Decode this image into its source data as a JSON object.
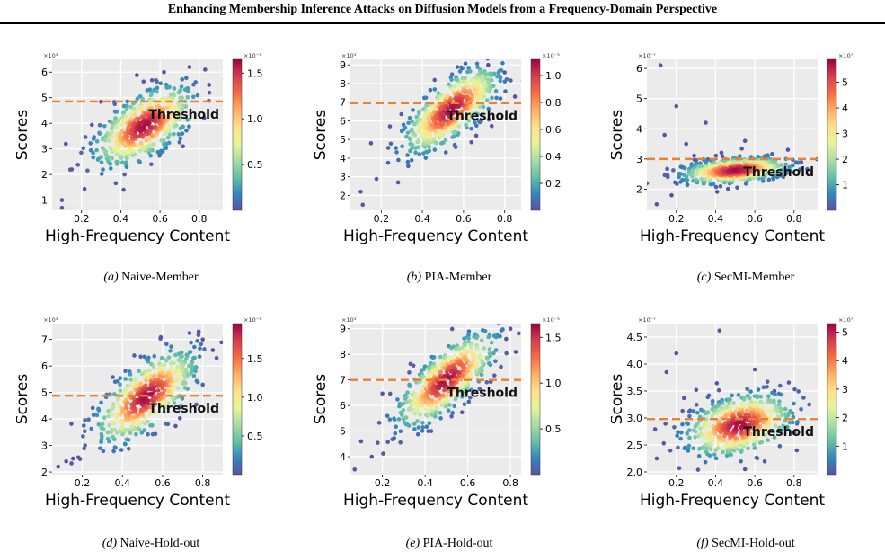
{
  "page": {
    "title": "Enhancing Membership Inference Attacks on Diffusion Models from a Frequency-Domain Perspective"
  },
  "colors": {
    "threshold": "#ee7f32",
    "plot_bg": "#ebebeb",
    "grid": "#ffffff",
    "colormap": [
      "#5e4fa2",
      "#3288bd",
      "#66c2a5",
      "#abdda4",
      "#e6f598",
      "#fee08b",
      "#fdae61",
      "#f46d43",
      "#d53e4f",
      "#9e0142"
    ]
  },
  "chart_data": [
    {
      "type": "scatter",
      "caption_letter": "(a)",
      "caption": "Naive-Member",
      "xlabel": "High-Frequency Content",
      "ylabel": "Scores",
      "y_exponent": "×10³",
      "cbar_exponent": "×10⁻³",
      "xlim": [
        0.05,
        0.92
      ],
      "ylim": [
        0.6,
        6.5
      ],
      "xticks": [
        0.2,
        0.4,
        0.6,
        0.8
      ],
      "yticks": [
        1,
        2,
        3,
        4,
        5,
        6
      ],
      "cbar_range": [
        0.0,
        1.65
      ],
      "cbar_ticks": [
        0.5,
        1.0,
        1.5
      ],
      "threshold": 4.85,
      "threshold_label": "Threshold",
      "cloud": {
        "mx": 0.52,
        "my": 3.9,
        "sx": 0.13,
        "sy": 0.8,
        "rho": 0.6,
        "n": 520
      },
      "outliers": [
        [
          0.1,
          1.0
        ],
        [
          0.1,
          0.7
        ],
        [
          0.12,
          3.2
        ],
        [
          0.15,
          2.2
        ],
        [
          0.75,
          6.2
        ],
        [
          0.83,
          6.1
        ],
        [
          0.85,
          5.5
        ],
        [
          0.62,
          6.0
        ]
      ],
      "grid": true
    },
    {
      "type": "scatter",
      "caption_letter": "(b)",
      "caption": "PIA-Member",
      "xlabel": "High-Frequency Content",
      "ylabel": "Scores",
      "y_exponent": "×10³",
      "cbar_exponent": "×10⁻³",
      "xlim": [
        0.05,
        0.88
      ],
      "ylim": [
        1.2,
        9.3
      ],
      "xticks": [
        0.2,
        0.4,
        0.6,
        0.8
      ],
      "yticks": [
        2,
        3,
        4,
        5,
        6,
        7,
        8,
        9
      ],
      "cbar_range": [
        0.0,
        1.12
      ],
      "cbar_ticks": [
        0.2,
        0.4,
        0.6,
        0.8,
        1.0
      ],
      "threshold": 6.95,
      "threshold_label": "Threshold",
      "cloud": {
        "mx": 0.54,
        "my": 6.6,
        "sx": 0.12,
        "sy": 1.2,
        "rho": 0.72,
        "n": 520
      },
      "outliers": [
        [
          0.1,
          2.2
        ],
        [
          0.11,
          1.5
        ],
        [
          0.15,
          4.8
        ],
        [
          0.8,
          8.6
        ],
        [
          0.85,
          7.3
        ],
        [
          0.72,
          9.0
        ]
      ],
      "grid": true
    },
    {
      "type": "scatter",
      "caption_letter": "(c)",
      "caption": "SecMI-Member",
      "xlabel": "High-Frequency Content",
      "ylabel": "Scores",
      "y_exponent": "×10⁻⁷",
      "cbar_exponent": "×10⁷",
      "xlim": [
        0.05,
        0.92
      ],
      "ylim": [
        1.3,
        6.3
      ],
      "xticks": [
        0.2,
        0.4,
        0.6,
        0.8
      ],
      "yticks": [
        2,
        3,
        4,
        5,
        6
      ],
      "cbar_range": [
        0.0,
        5.9
      ],
      "cbar_ticks": [
        1,
        2,
        3,
        4,
        5
      ],
      "threshold": 3.0,
      "threshold_label": "Threshold",
      "cloud": {
        "mx": 0.5,
        "my": 2.62,
        "sx": 0.14,
        "sy": 0.22,
        "rho": 0.35,
        "n": 520
      },
      "outliers": [
        [
          0.12,
          6.1
        ],
        [
          0.2,
          4.75
        ],
        [
          0.35,
          4.2
        ],
        [
          0.14,
          3.8
        ],
        [
          0.1,
          1.5
        ],
        [
          0.25,
          3.5
        ],
        [
          0.55,
          3.6
        ]
      ],
      "grid": true
    },
    {
      "type": "scatter",
      "caption_letter": "(d)",
      "caption": "Naive-Hold-out",
      "xlabel": "High-Frequency Content",
      "ylabel": "Scores",
      "y_exponent": "×10³",
      "cbar_exponent": "×10⁻³",
      "xlim": [
        0.05,
        0.9
      ],
      "ylim": [
        1.9,
        7.6
      ],
      "xticks": [
        0.2,
        0.4,
        0.6,
        0.8
      ],
      "yticks": [
        2,
        3,
        4,
        5,
        6,
        7
      ],
      "cbar_range": [
        0.0,
        1.95
      ],
      "cbar_ticks": [
        0.5,
        1.0,
        1.5
      ],
      "threshold": 4.88,
      "threshold_label": "Threshold",
      "cloud": {
        "mx": 0.52,
        "my": 4.85,
        "sx": 0.13,
        "sy": 0.9,
        "rho": 0.68,
        "n": 520
      },
      "outliers": [
        [
          0.08,
          2.2
        ],
        [
          0.12,
          2.4
        ],
        [
          0.78,
          7.3
        ],
        [
          0.85,
          6.6
        ],
        [
          0.8,
          7.0
        ]
      ],
      "grid": true
    },
    {
      "type": "scatter",
      "caption_letter": "(e)",
      "caption": "PIA-Hold-out",
      "xlabel": "High-Frequency Content",
      "ylabel": "Scores",
      "y_exponent": "×10³",
      "cbar_exponent": "×10⁻³",
      "xlim": [
        0.05,
        0.85
      ],
      "ylim": [
        3.3,
        9.2
      ],
      "xticks": [
        0.2,
        0.4,
        0.6,
        0.8
      ],
      "yticks": [
        4,
        5,
        6,
        7,
        8,
        9
      ],
      "cbar_range": [
        0.0,
        1.65
      ],
      "cbar_ticks": [
        0.5,
        1.0,
        1.5
      ],
      "threshold": 7.0,
      "threshold_label": "Threshold",
      "cloud": {
        "mx": 0.5,
        "my": 7.0,
        "sx": 0.12,
        "sy": 0.95,
        "rho": 0.75,
        "n": 520
      },
      "outliers": [
        [
          0.07,
          3.5
        ],
        [
          0.1,
          4.6
        ],
        [
          0.8,
          9.0
        ],
        [
          0.78,
          8.6
        ],
        [
          0.15,
          4.0
        ]
      ],
      "grid": true
    },
    {
      "type": "scatter",
      "caption_letter": "(f)",
      "caption": "SecMI-Hold-out",
      "xlabel": "High-Frequency Content",
      "ylabel": "Scores",
      "y_exponent": "×10⁻⁷",
      "cbar_exponent": "×10⁷",
      "xlim": [
        0.05,
        0.92
      ],
      "ylim": [
        1.95,
        4.75
      ],
      "xticks": [
        0.2,
        0.4,
        0.6,
        0.8
      ],
      "yticks": [
        2.0,
        2.5,
        3.0,
        3.5,
        4.0,
        4.5
      ],
      "cbar_range": [
        0.0,
        5.3
      ],
      "cbar_ticks": [
        1,
        2,
        3,
        4,
        5
      ],
      "threshold": 2.98,
      "threshold_label": "Threshold",
      "cloud": {
        "mx": 0.52,
        "my": 2.87,
        "sx": 0.14,
        "sy": 0.3,
        "rho": 0.35,
        "n": 520
      },
      "outliers": [
        [
          0.42,
          4.62
        ],
        [
          0.2,
          4.2
        ],
        [
          0.15,
          3.85
        ],
        [
          0.1,
          2.25
        ],
        [
          0.55,
          2.05
        ],
        [
          0.6,
          3.9
        ],
        [
          0.7,
          3.5
        ]
      ],
      "grid": true
    }
  ]
}
